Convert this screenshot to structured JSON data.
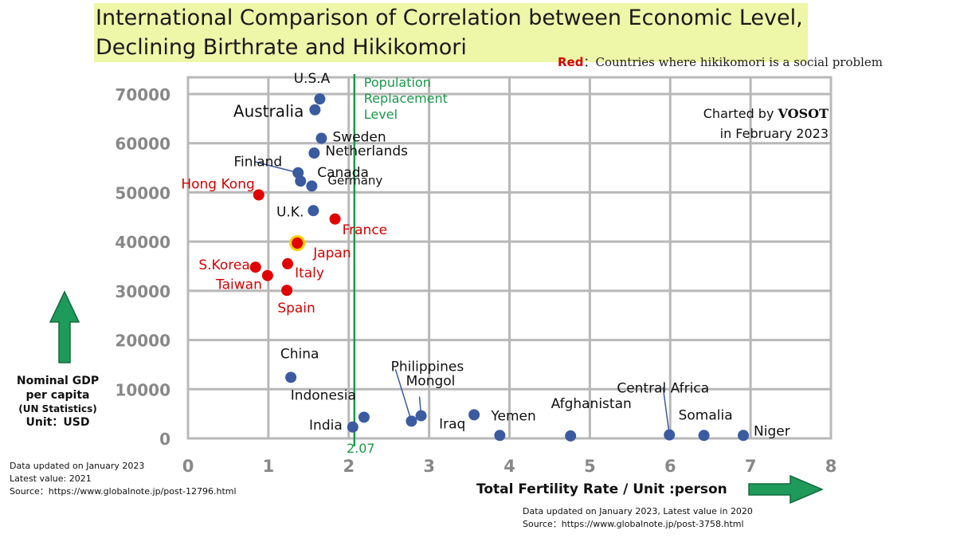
{
  "title": {
    "line1": "International Comparison of Correlation between Economic Level,",
    "line2": "Declining Birthrate and Hikikomori"
  },
  "legend_note": {
    "marker": "Red",
    "text": "：Countries where hikikomori is a social problem"
  },
  "credit": {
    "prefix": "Charted by",
    "brand": "VOSOT",
    "line2": "in February 2023"
  },
  "y_axis_label": {
    "line1": "Nominal GDP",
    "line2": "per capita",
    "line3": "(UN Statistics)",
    "line4": "Unit：USD"
  },
  "x_axis_label": "Total Fertility Rate / Unit :person",
  "notes": {
    "left": [
      "Data updated on January 2023",
      "Latest value: 2021",
      "Source：https://www.globalnote.jp/post-12796.html"
    ],
    "right": [
      "Data updated on  January 2023, Latest value in 2020",
      "Source：https://www.globalnote.jp/post-3758.html"
    ]
  },
  "colors": {
    "normal_point": "#3a5ba0",
    "problem_point": "#e00000",
    "problem_label": "#d60000",
    "replacement_line": "#1a9a4a",
    "grid": "#b8b8b8",
    "arrow": "#1e9a5a",
    "highlight_ring": "#f5d000",
    "title_bg": "#eef6a8"
  },
  "chart_data": {
    "type": "scatter",
    "xlabel": "Total Fertility Rate / Unit :person",
    "ylabel": "Nominal GDP per capita (UN Statistics) Unit：USD",
    "xlim": [
      0,
      8
    ],
    "ylim": [
      0,
      70000
    ],
    "x_ticks": [
      0,
      1,
      2,
      3,
      4,
      5,
      6,
      7,
      8
    ],
    "y_ticks": [
      0,
      10000,
      20000,
      30000,
      40000,
      50000,
      60000,
      70000
    ],
    "grid": true,
    "reference_line": {
      "x": 2.07,
      "label": "Population Replacement Level",
      "value_label": "2.07"
    },
    "points": [
      {
        "name": "U.S.A",
        "x": 1.64,
        "y": 69000,
        "problem": false
      },
      {
        "name": "Australia",
        "x": 1.58,
        "y": 66800,
        "problem": false
      },
      {
        "name": "Sweden",
        "x": 1.66,
        "y": 61000,
        "problem": false
      },
      {
        "name": "Netherlands",
        "x": 1.57,
        "y": 58000,
        "problem": false
      },
      {
        "name": "Finland",
        "x": 1.37,
        "y": 54000,
        "problem": false
      },
      {
        "name": "Canada",
        "x": 1.4,
        "y": 52300,
        "problem": false
      },
      {
        "name": "Germany",
        "x": 1.54,
        "y": 51300,
        "problem": false
      },
      {
        "name": "Hong Kong",
        "x": 0.88,
        "y": 49500,
        "problem": true
      },
      {
        "name": "U.K.",
        "x": 1.56,
        "y": 46300,
        "problem": false
      },
      {
        "name": "France",
        "x": 1.83,
        "y": 44600,
        "problem": true
      },
      {
        "name": "Japan",
        "x": 1.36,
        "y": 39700,
        "problem": true,
        "highlight": true
      },
      {
        "name": "Italy",
        "x": 1.24,
        "y": 35500,
        "problem": true
      },
      {
        "name": "S.Korea",
        "x": 0.84,
        "y": 34800,
        "problem": true
      },
      {
        "name": "Taiwan",
        "x": 0.99,
        "y": 33100,
        "problem": true
      },
      {
        "name": "Spain",
        "x": 1.23,
        "y": 30100,
        "problem": true
      },
      {
        "name": "China",
        "x": 1.28,
        "y": 12400,
        "problem": false
      },
      {
        "name": "India",
        "x": 2.05,
        "y": 2300,
        "problem": false
      },
      {
        "name": "Indonesia",
        "x": 2.19,
        "y": 4300,
        "problem": false
      },
      {
        "name": "Philippines",
        "x": 2.78,
        "y": 3500,
        "problem": false
      },
      {
        "name": "Mongol",
        "x": 2.9,
        "y": 4600,
        "problem": false
      },
      {
        "name": "Iraq",
        "x": 3.56,
        "y": 4800,
        "problem": false
      },
      {
        "name": "Yemen",
        "x": 3.88,
        "y": 600,
        "problem": false
      },
      {
        "name": "Afghanistan",
        "x": 4.76,
        "y": 500,
        "problem": false
      },
      {
        "name": "Central Africa",
        "x": 5.99,
        "y": 700,
        "problem": false
      },
      {
        "name": "Somalia",
        "x": 6.42,
        "y": 600,
        "problem": false
      },
      {
        "name": "Niger",
        "x": 6.91,
        "y": 600,
        "problem": false
      }
    ]
  }
}
